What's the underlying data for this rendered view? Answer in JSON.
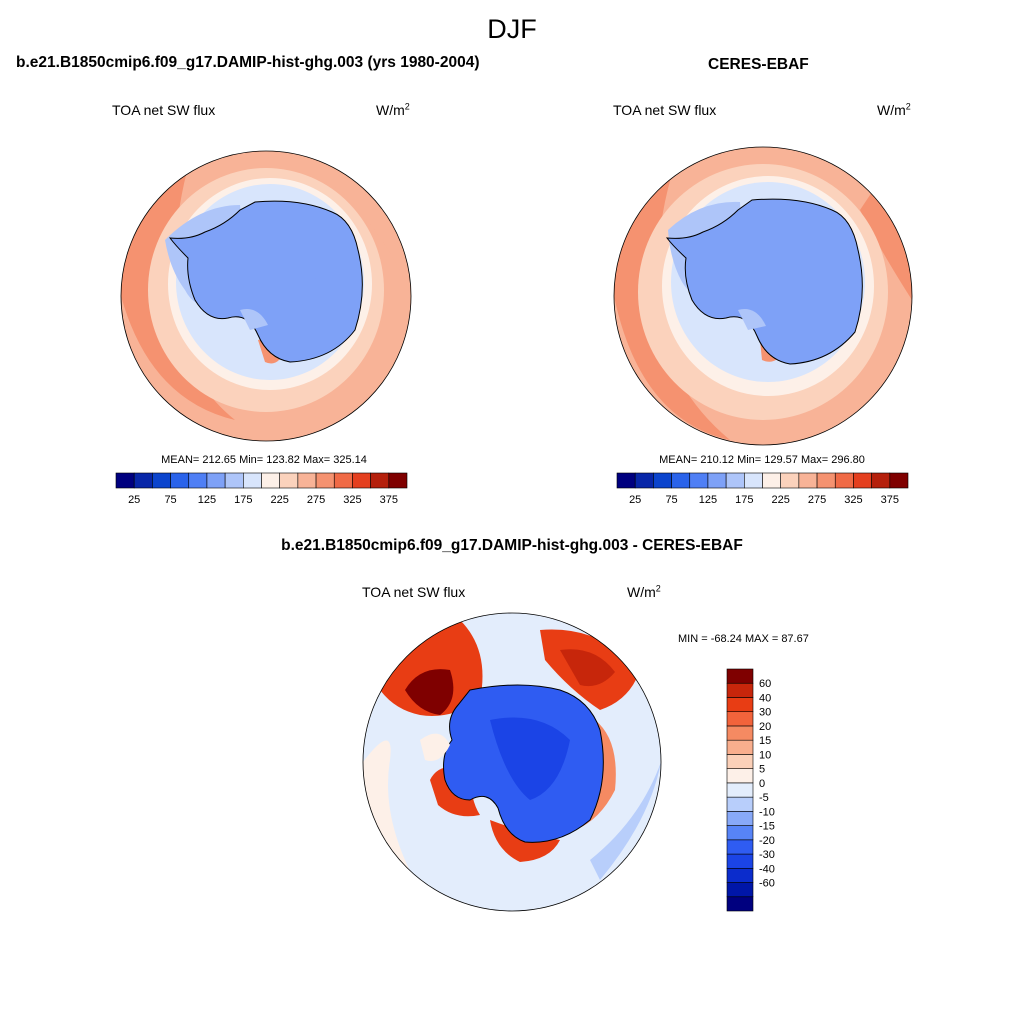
{
  "figure": {
    "title": "DJF"
  },
  "colors": {
    "abs_scale": [
      "#00007f",
      "#0826a8",
      "#0b44cd",
      "#2a63ea",
      "#4f7ff5",
      "#7ea1f7",
      "#aec5f9",
      "#d8e5fc",
      "#fdf0e8",
      "#fbd2bc",
      "#f8b397",
      "#f59270",
      "#f06a46",
      "#e43f1f",
      "#b5200c",
      "#7f0000"
    ],
    "diff_scale": [
      "#00007f",
      "#0016a8",
      "#0b2ccc",
      "#1b44e6",
      "#2f5cf2",
      "#5784f7",
      "#88a9f8",
      "#b8cefb",
      "#e3edfc",
      "#fdf0e8",
      "#fbd0b8",
      "#f9ae8d",
      "#f58a62",
      "#f2633b",
      "#e83d14",
      "#c7260b",
      "#7f0000"
    ],
    "land": "#7ea1f7",
    "coast": "#000000"
  },
  "panels": [
    {
      "title": "b.e21.B1850cmip6.f09_g17.DAMIP-hist-ghg.003 (yrs 1980-2004)",
      "variable": "TOA net SW flux",
      "units_base": "W/m",
      "units_exp": "2",
      "stats": "MEAN= 212.65  Min= 123.82  Max= 325.14"
    },
    {
      "title": "CERES-EBAF",
      "variable": "TOA net SW flux",
      "units_base": "W/m",
      "units_exp": "2",
      "stats": "MEAN= 210.12  Min= 129.57  Max= 296.80"
    },
    {
      "title": "b.e21.B1850cmip6.f09_g17.DAMIP-hist-ghg.003 - CERES-EBAF",
      "variable": "TOA net SW flux",
      "units_base": "W/m",
      "units_exp": "2",
      "stats": "MIN = -68.24 MAX =  87.67"
    }
  ],
  "chart_data": [
    {
      "type": "heatmap",
      "projection": "south-polar-stereographic",
      "title": "b.e21.B1850cmip6.f09_g17.DAMIP-hist-ghg.003 (yrs 1980-2004)",
      "variable": "TOA net SW flux",
      "units": "W/m2",
      "mean": 212.65,
      "min": 123.82,
      "max": 325.14,
      "colorbar_orientation": "horizontal",
      "colorbar_ticks": [
        "25",
        "75",
        "125",
        "175",
        "225",
        "275",
        "325",
        "375"
      ],
      "colorbar_levels": [
        25,
        50,
        75,
        100,
        125,
        150,
        175,
        200,
        225,
        250,
        275,
        300,
        325,
        350,
        375
      ]
    },
    {
      "type": "heatmap",
      "projection": "south-polar-stereographic",
      "title": "CERES-EBAF",
      "variable": "TOA net SW flux",
      "units": "W/m2",
      "mean": 210.12,
      "min": 129.57,
      "max": 296.8,
      "colorbar_orientation": "horizontal",
      "colorbar_ticks": [
        "25",
        "75",
        "125",
        "175",
        "225",
        "275",
        "325",
        "375"
      ],
      "colorbar_levels": [
        25,
        50,
        75,
        100,
        125,
        150,
        175,
        200,
        225,
        250,
        275,
        300,
        325,
        350,
        375
      ]
    },
    {
      "type": "heatmap",
      "projection": "south-polar-stereographic",
      "title": "b.e21.B1850cmip6.f09_g17.DAMIP-hist-ghg.003 - CERES-EBAF",
      "variable": "TOA net SW flux",
      "units": "W/m2",
      "min": -68.24,
      "max": 87.67,
      "colorbar_orientation": "vertical",
      "colorbar_ticks": [
        "60",
        "40",
        "30",
        "20",
        "15",
        "10",
        "5",
        "0",
        "-5",
        "-10",
        "-15",
        "-20",
        "-30",
        "-40",
        "-60"
      ],
      "colorbar_levels": [
        -60,
        -40,
        -30,
        -20,
        -15,
        -10,
        -5,
        0,
        5,
        10,
        15,
        20,
        30,
        40,
        60
      ]
    }
  ]
}
